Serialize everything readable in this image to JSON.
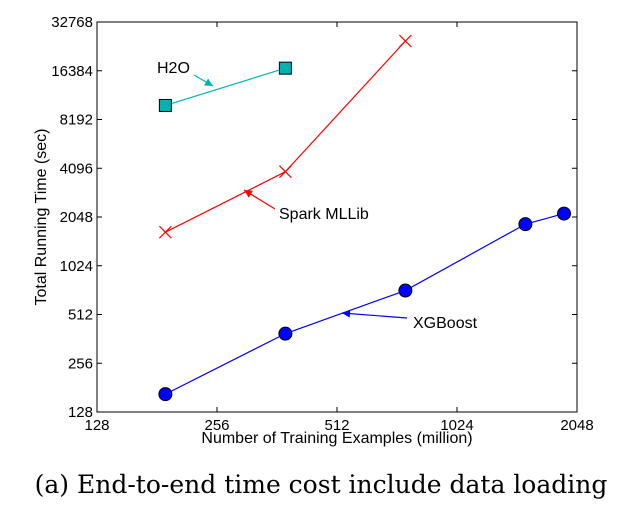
{
  "chart_data": {
    "type": "line",
    "xlabel": "Number of Training Examples (million)",
    "ylabel": "Total Running Time (sec)",
    "xscale": "log2",
    "yscale": "log2",
    "xlim": [
      128,
      2048
    ],
    "ylim": [
      128,
      32768
    ],
    "xticks": [
      128,
      256,
      512,
      1024,
      2048
    ],
    "yticks": [
      128,
      256,
      512,
      1024,
      2048,
      4096,
      8192,
      16384,
      32768
    ],
    "grid": false,
    "legend": "none",
    "series": [
      {
        "name": "H2O",
        "color": "#00b2b2",
        "marker": "square",
        "x": [
          190,
          380
        ],
        "y": [
          10000,
          17000
        ]
      },
      {
        "name": "Spark MLLib",
        "color": "#ff0000",
        "marker": "x",
        "x": [
          190,
          380,
          760
        ],
        "y": [
          1650,
          3900,
          25000
        ]
      },
      {
        "name": "XGBoost",
        "color": "#0000ff",
        "marker": "circle",
        "x": [
          190,
          380,
          760,
          1520,
          1900
        ],
        "y": [
          165,
          390,
          720,
          1850,
          2150
        ]
      }
    ],
    "annotations": [
      {
        "text": "H2O",
        "series": "H2O"
      },
      {
        "text": "Spark MLLib",
        "series": "Spark MLLib"
      },
      {
        "text": "XGBoost",
        "series": "XGBoost"
      }
    ]
  },
  "caption": "(a) End-to-end time cost include data loading"
}
